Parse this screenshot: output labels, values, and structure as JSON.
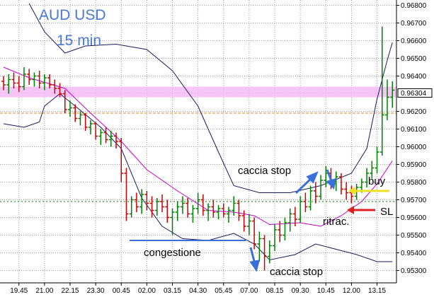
{
  "chart_data": {
    "type": "ohlc",
    "title": "AUD USD",
    "subtitle": "15 min",
    "up_color": "#008000",
    "down_color": "#cc0000",
    "grid": true,
    "xlim": [
      -0.7,
      76.8
    ],
    "ylim": [
      0.9523,
      0.9683
    ],
    "xticks": [
      {
        "value": 3,
        "label": "19.45"
      },
      {
        "value": 8,
        "label": "21.00"
      },
      {
        "value": 13,
        "label": "22.15"
      },
      {
        "value": 18,
        "label": "23.30"
      },
      {
        "value": 23,
        "label": "00.45"
      },
      {
        "value": 28,
        "label": "02.00"
      },
      {
        "value": 33,
        "label": "03.15"
      },
      {
        "value": 38,
        "label": "04.30"
      },
      {
        "value": 43,
        "label": "05.45"
      },
      {
        "value": 48,
        "label": "07.00"
      },
      {
        "value": 53,
        "label": "08.15"
      },
      {
        "value": 58,
        "label": "09.30"
      },
      {
        "value": 63,
        "label": "10.45"
      },
      {
        "value": 68,
        "label": "12.00"
      },
      {
        "value": 73,
        "label": "13.15"
      }
    ],
    "yticks": [
      {
        "value": 0.953,
        "label": "0.95300"
      },
      {
        "value": 0.954,
        "label": "0.95400"
      },
      {
        "value": 0.955,
        "label": "0.95500"
      },
      {
        "value": 0.956,
        "label": "0.95600"
      },
      {
        "value": 0.957,
        "label": "0.95700"
      },
      {
        "value": 0.958,
        "label": "0.95800"
      },
      {
        "value": 0.959,
        "label": "0.95900"
      },
      {
        "value": 0.96,
        "label": "0.96000"
      },
      {
        "value": 0.961,
        "label": "0.96100"
      },
      {
        "value": 0.962,
        "label": "0.96200"
      },
      {
        "value": 0.964,
        "label": "0.96400"
      },
      {
        "value": 0.965,
        "label": "0.96500"
      },
      {
        "value": 0.966,
        "label": "0.96600"
      },
      {
        "value": 0.967,
        "label": "0.96700"
      },
      {
        "value": 0.968,
        "label": "0.96800"
      }
    ],
    "ohlc": [
      [
        0.9637,
        0.964,
        0.9632,
        0.9635
      ],
      [
        0.9635,
        0.9641,
        0.963,
        0.9638
      ],
      [
        0.9638,
        0.9642,
        0.9633,
        0.9636
      ],
      [
        0.9636,
        0.964,
        0.9631,
        0.9634
      ],
      [
        0.9634,
        0.9645,
        0.9632,
        0.9641
      ],
      [
        0.9641,
        0.9644,
        0.9635,
        0.9638
      ],
      [
        0.9638,
        0.9642,
        0.9634,
        0.964
      ],
      [
        0.964,
        0.9643,
        0.9633,
        0.9636
      ],
      [
        0.9636,
        0.9641,
        0.9632,
        0.9639
      ],
      [
        0.9639,
        0.9641,
        0.9633,
        0.9635
      ],
      [
        0.9635,
        0.9638,
        0.963,
        0.9633
      ],
      [
        0.9633,
        0.9636,
        0.9628,
        0.963
      ],
      [
        0.963,
        0.9632,
        0.9619,
        0.9621
      ],
      [
        0.9621,
        0.9626,
        0.9617,
        0.9622
      ],
      [
        0.9622,
        0.9624,
        0.9614,
        0.9616
      ],
      [
        0.9616,
        0.962,
        0.9612,
        0.9618
      ],
      [
        0.9618,
        0.9619,
        0.9609,
        0.9611
      ],
      [
        0.9611,
        0.9615,
        0.9607,
        0.9613
      ],
      [
        0.9613,
        0.9614,
        0.9604,
        0.9606
      ],
      [
        0.9606,
        0.961,
        0.9601,
        0.9608
      ],
      [
        0.9608,
        0.9611,
        0.9602,
        0.9604
      ],
      [
        0.9604,
        0.9609,
        0.96,
        0.9606
      ],
      [
        0.9606,
        0.9608,
        0.9599,
        0.9603
      ],
      [
        0.9603,
        0.9605,
        0.958,
        0.9585
      ],
      [
        0.9585,
        0.9588,
        0.9558,
        0.9562
      ],
      [
        0.9562,
        0.9572,
        0.956,
        0.957
      ],
      [
        0.957,
        0.9574,
        0.9563,
        0.9566
      ],
      [
        0.9566,
        0.9576,
        0.9562,
        0.9573
      ],
      [
        0.9573,
        0.9575,
        0.9564,
        0.9568
      ],
      [
        0.9568,
        0.9572,
        0.956,
        0.9564
      ],
      [
        0.9564,
        0.9571,
        0.9561,
        0.9569
      ],
      [
        0.9569,
        0.9573,
        0.9563,
        0.9566
      ],
      [
        0.9566,
        0.957,
        0.9557,
        0.956
      ],
      [
        0.956,
        0.9565,
        0.955,
        0.9563
      ],
      [
        0.9563,
        0.9569,
        0.9558,
        0.9566
      ],
      [
        0.9566,
        0.9572,
        0.9562,
        0.9568
      ],
      [
        0.9568,
        0.9571,
        0.956,
        0.9562
      ],
      [
        0.9562,
        0.9567,
        0.9557,
        0.9565
      ],
      [
        0.9565,
        0.9574,
        0.9562,
        0.957
      ],
      [
        0.957,
        0.9573,
        0.9561,
        0.9564
      ],
      [
        0.9564,
        0.9568,
        0.9558,
        0.9566
      ],
      [
        0.9566,
        0.957,
        0.956,
        0.9563
      ],
      [
        0.9563,
        0.9567,
        0.9559,
        0.9565
      ],
      [
        0.9565,
        0.9568,
        0.956,
        0.9562
      ],
      [
        0.9562,
        0.9566,
        0.9557,
        0.9564
      ],
      [
        0.9564,
        0.9572,
        0.9561,
        0.9568
      ],
      [
        0.9568,
        0.957,
        0.9558,
        0.9561
      ],
      [
        0.9561,
        0.9564,
        0.9552,
        0.9555
      ],
      [
        0.9555,
        0.9562,
        0.955,
        0.9558
      ],
      [
        0.9558,
        0.956,
        0.9542,
        0.9545
      ],
      [
        0.9545,
        0.9552,
        0.9535,
        0.9548
      ],
      [
        0.9548,
        0.955,
        0.953,
        0.9538
      ],
      [
        0.9538,
        0.9547,
        0.9534,
        0.9544
      ],
      [
        0.9544,
        0.9556,
        0.9541,
        0.9553
      ],
      [
        0.9553,
        0.9558,
        0.9546,
        0.955
      ],
      [
        0.955,
        0.956,
        0.9547,
        0.9557
      ],
      [
        0.9557,
        0.9565,
        0.9552,
        0.9562
      ],
      [
        0.9562,
        0.9566,
        0.9555,
        0.9559
      ],
      [
        0.9559,
        0.9572,
        0.9557,
        0.9569
      ],
      [
        0.9569,
        0.9574,
        0.9563,
        0.9566
      ],
      [
        0.9566,
        0.9578,
        0.9564,
        0.9575
      ],
      [
        0.9575,
        0.958,
        0.9568,
        0.9572
      ],
      [
        0.9572,
        0.9584,
        0.957,
        0.9581
      ],
      [
        0.9581,
        0.9589,
        0.9577,
        0.9585
      ],
      [
        0.9585,
        0.9588,
        0.9576,
        0.9579
      ],
      [
        0.9579,
        0.9586,
        0.9575,
        0.9583
      ],
      [
        0.9583,
        0.9585,
        0.9573,
        0.9576
      ],
      [
        0.9576,
        0.958,
        0.957,
        0.9574
      ],
      [
        0.9574,
        0.9578,
        0.9568,
        0.9572
      ],
      [
        0.9572,
        0.9579,
        0.957,
        0.9577
      ],
      [
        0.9577,
        0.9582,
        0.9574,
        0.958
      ],
      [
        0.958,
        0.9588,
        0.9577,
        0.9585
      ],
      [
        0.9585,
        0.9592,
        0.9582,
        0.9588
      ],
      [
        0.9588,
        0.96,
        0.9585,
        0.9597
      ],
      [
        0.9597,
        0.9668,
        0.9595,
        0.9618
      ],
      [
        0.9618,
        0.9638,
        0.9615,
        0.9628
      ],
      [
        0.9628,
        0.9637,
        0.9622,
        0.9632
      ]
    ],
    "bands": [
      {
        "color": "#1a1a5e",
        "x": [
          5,
          8,
          12,
          16,
          22,
          28,
          33,
          38,
          42,
          45,
          50,
          56,
          62,
          68,
          71,
          73,
          75,
          76
        ],
        "values": [
          0.9681,
          0.9665,
          0.9653,
          0.9657,
          0.9658,
          0.9655,
          0.9643,
          0.9623,
          0.9597,
          0.9578,
          0.9574,
          0.9574,
          0.9578,
          0.9585,
          0.9599,
          0.9627,
          0.9649,
          0.9659
        ]
      },
      {
        "color": "#1a1a5e",
        "x": [
          0,
          4,
          7,
          8,
          11,
          14,
          19,
          23,
          27,
          31,
          35,
          40,
          45,
          49,
          52,
          57,
          61,
          65,
          69,
          73,
          76
        ],
        "values": [
          0.9613,
          0.9611,
          0.9614,
          0.9623,
          0.963,
          0.9623,
          0.9611,
          0.9599,
          0.9571,
          0.9555,
          0.9548,
          0.9547,
          0.9551,
          0.9545,
          0.9536,
          0.9539,
          0.9545,
          0.9542,
          0.9539,
          0.9535,
          0.9535
        ]
      },
      {
        "color": "#cc00cc",
        "x": [
          0,
          5,
          12,
          17,
          23,
          28,
          34,
          40,
          45,
          49,
          52,
          58,
          62,
          66,
          70,
          73,
          76
        ],
        "values": [
          0.9645,
          0.9639,
          0.9633,
          0.9619,
          0.9603,
          0.9587,
          0.9575,
          0.9564,
          0.9563,
          0.9561,
          0.9556,
          0.9557,
          0.9555,
          0.9561,
          0.9569,
          0.9579,
          0.9592
        ]
      }
    ],
    "zone": {
      "color": "#f4b8f4",
      "values": [
        0.9628,
        0.9634
      ]
    },
    "levels": [
      {
        "value": 0.96304,
        "label": "0.96304",
        "color": "#f4b8f4"
      },
      {
        "value": 0.9619,
        "color": "#e08a2a"
      },
      {
        "value": 0.9569,
        "color": "#008000"
      }
    ],
    "annotations": [
      "caccia stop",
      "congestione",
      "caccia stop",
      "buy",
      "SL",
      "ritrac."
    ]
  }
}
